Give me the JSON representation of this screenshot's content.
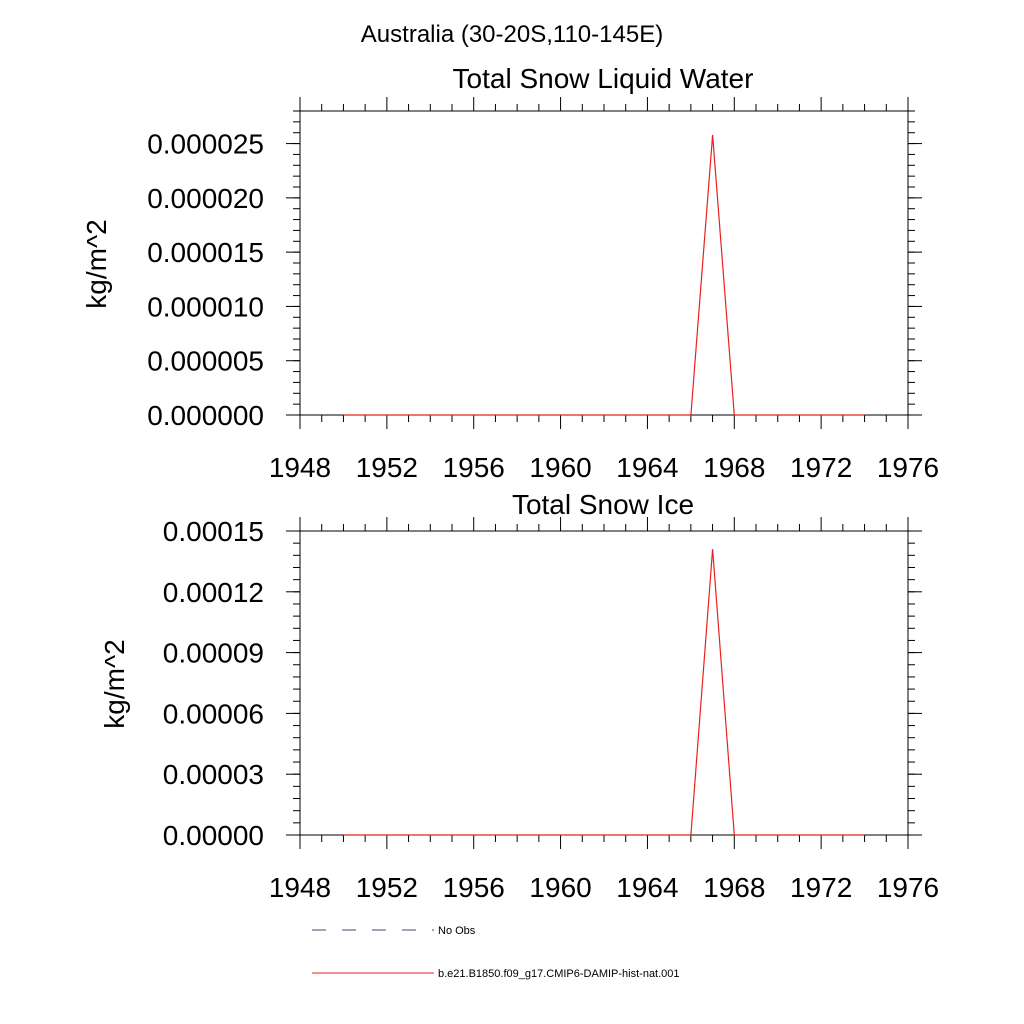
{
  "figure_title": "Australia (30-20S,110-145E)",
  "legend": [
    {
      "label": "No Obs",
      "style": "dashed",
      "color": "#3a4a7a"
    },
    {
      "label": "b.e21.B1850.f09_g17.CMIP6-DAMIP-hist-nat.001",
      "style": "solid",
      "color": "#e8211f"
    }
  ],
  "chart_data": [
    {
      "type": "line",
      "title": "Total Snow Liquid Water",
      "ylabel": "kg/m^2",
      "xlabel": "",
      "xlim": [
        1948,
        1976
      ],
      "ylim": [
        0,
        2.8e-05
      ],
      "xticks": [
        1948,
        1952,
        1956,
        1960,
        1964,
        1968,
        1972,
        1976
      ],
      "xtick_labels": [
        "1948",
        "1952",
        "1956",
        "1960",
        "1964",
        "1968",
        "1972",
        "1976"
      ],
      "yticks": [
        0,
        5e-06,
        1e-05,
        1.5e-05,
        2e-05,
        2.5e-05
      ],
      "ytick_labels": [
        "0.000000",
        "0.000005",
        "0.000010",
        "0.000015",
        "0.000020",
        "0.000025"
      ],
      "grid": false,
      "series": [
        {
          "name": "b.e21.B1850.f09_g17.CMIP6-DAMIP-hist-nat.001",
          "color": "#e8211f",
          "x": [
            1950,
            1951,
            1952,
            1953,
            1954,
            1955,
            1956,
            1957,
            1958,
            1959,
            1960,
            1961,
            1962,
            1963,
            1964,
            1965,
            1966,
            1967,
            1968,
            1969,
            1970,
            1971,
            1972,
            1973,
            1974
          ],
          "y": [
            0,
            0,
            0,
            0,
            0,
            0,
            0,
            0,
            0,
            0,
            0,
            0,
            0,
            0,
            0,
            0,
            0,
            2.58e-05,
            0,
            0,
            0,
            0,
            0,
            0,
            0
          ]
        }
      ]
    },
    {
      "type": "line",
      "title": "Total Snow Ice",
      "ylabel": "kg/m^2",
      "xlabel": "",
      "xlim": [
        1948,
        1976
      ],
      "ylim": [
        0,
        0.00015
      ],
      "xticks": [
        1948,
        1952,
        1956,
        1960,
        1964,
        1968,
        1972,
        1976
      ],
      "xtick_labels": [
        "1948",
        "1952",
        "1956",
        "1960",
        "1964",
        "1968",
        "1972",
        "1976"
      ],
      "yticks": [
        0,
        3e-05,
        6e-05,
        9e-05,
        0.00012,
        0.00015
      ],
      "ytick_labels": [
        "0.00000",
        "0.00003",
        "0.00006",
        "0.00009",
        "0.00012",
        "0.00015"
      ],
      "grid": false,
      "series": [
        {
          "name": "b.e21.B1850.f09_g17.CMIP6-DAMIP-hist-nat.001",
          "color": "#e8211f",
          "x": [
            1950,
            1951,
            1952,
            1953,
            1954,
            1955,
            1956,
            1957,
            1958,
            1959,
            1960,
            1961,
            1962,
            1963,
            1964,
            1965,
            1966,
            1967,
            1968,
            1969,
            1970,
            1971,
            1972,
            1973,
            1974
          ],
          "y": [
            0,
            0,
            0,
            0,
            0,
            0,
            0,
            0,
            0,
            0,
            0,
            0,
            0,
            0,
            0,
            0,
            0,
            0.000141,
            0,
            0,
            0,
            0,
            0,
            0,
            0
          ]
        }
      ]
    }
  ]
}
